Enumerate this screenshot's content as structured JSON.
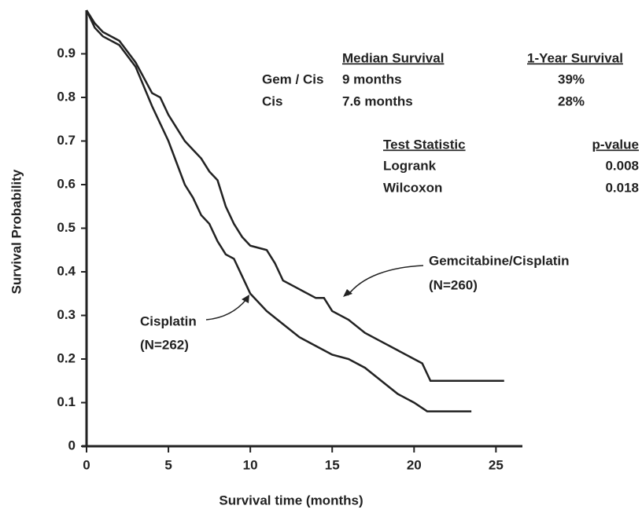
{
  "chart_data": {
    "type": "line",
    "xlabel": "Survival time (months)",
    "ylabel": "Survival Probability",
    "xlim": [
      0,
      27
    ],
    "ylim": [
      0,
      1
    ],
    "xticks": [
      0,
      5,
      10,
      15,
      20,
      25
    ],
    "yticks": [
      0,
      0.1,
      0.2,
      0.3,
      0.4,
      0.5,
      0.6,
      0.7,
      0.8,
      0.9
    ],
    "series": [
      {
        "name": "Gemcitabine/Cisplatin",
        "n_label": "(N=260)",
        "color": "#222222",
        "x": [
          0,
          0.5,
          1,
          2,
          3,
          4,
          4.5,
          5,
          5.5,
          6,
          6.5,
          7,
          7.5,
          8,
          8.5,
          9,
          9.5,
          10,
          11,
          11.5,
          12,
          13,
          14,
          14.5,
          15,
          16,
          17,
          18,
          19,
          20,
          20.5,
          21,
          21.3,
          25.5
        ],
        "values": [
          1,
          0.97,
          0.95,
          0.93,
          0.88,
          0.81,
          0.8,
          0.76,
          0.73,
          0.7,
          0.68,
          0.66,
          0.63,
          0.61,
          0.55,
          0.51,
          0.48,
          0.46,
          0.45,
          0.42,
          0.38,
          0.36,
          0.34,
          0.34,
          0.31,
          0.29,
          0.26,
          0.24,
          0.22,
          0.2,
          0.19,
          0.15,
          0.15,
          0.15
        ]
      },
      {
        "name": "Cisplatin",
        "n_label": "(N=262)",
        "color": "#222222",
        "x": [
          0,
          0.5,
          1,
          2,
          3,
          4,
          4.5,
          5,
          5.5,
          6,
          6.5,
          7,
          7.5,
          8,
          8.5,
          9,
          9.5,
          10,
          11,
          12,
          13,
          14,
          15,
          16,
          17,
          18,
          19,
          20,
          20.8,
          23.5
        ],
        "values": [
          1,
          0.96,
          0.94,
          0.92,
          0.87,
          0.78,
          0.74,
          0.7,
          0.65,
          0.6,
          0.57,
          0.53,
          0.51,
          0.47,
          0.44,
          0.43,
          0.39,
          0.35,
          0.31,
          0.28,
          0.25,
          0.23,
          0.21,
          0.2,
          0.18,
          0.15,
          0.12,
          0.1,
          0.08,
          0.08
        ]
      }
    ],
    "survival_table": {
      "headers": [
        "Median Survival",
        "1-Year Survival"
      ],
      "rows": [
        [
          "Gem / Cis",
          "9 months",
          "39%"
        ],
        [
          "Cis",
          "7.6 months",
          "28%"
        ]
      ]
    },
    "test_table": {
      "headers": [
        "Test Statistic",
        "p-value"
      ],
      "rows": [
        [
          "Logrank",
          "0.008"
        ],
        [
          "Wilcoxon",
          "0.018"
        ]
      ]
    }
  }
}
